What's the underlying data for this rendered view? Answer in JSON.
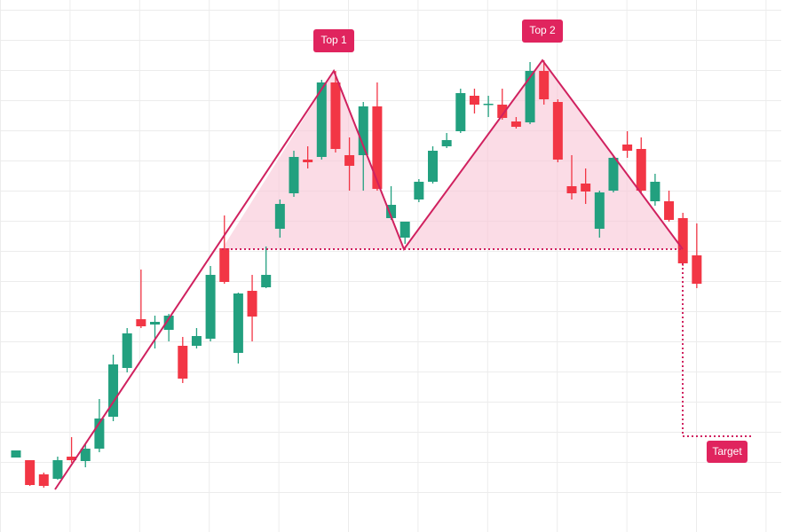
{
  "chart_data": {
    "type": "candlestick",
    "open": [
      84,
      81,
      65,
      60,
      85,
      80,
      94,
      130,
      185,
      240,
      234,
      228,
      210,
      210,
      218,
      320,
      202,
      272,
      276,
      342,
      382,
      420,
      423,
      507,
      425,
      425,
      480,
      354,
      332,
      375,
      395,
      435,
      452,
      492,
      482,
      482,
      463,
      462,
      520,
      485,
      390,
      393,
      342,
      385,
      437,
      432,
      373,
      373,
      354,
      312
    ],
    "high": [
      92,
      81,
      67,
      85,
      107,
      100,
      150,
      200,
      230,
      296,
      244,
      246,
      220,
      230,
      300,
      357,
      270,
      290,
      322,
      375,
      430,
      435,
      510,
      520,
      445,
      485,
      507,
      390,
      350,
      398,
      435,
      450,
      500,
      500,
      492,
      500,
      468,
      530,
      532,
      488,
      425,
      410,
      385,
      425,
      452,
      445,
      404,
      385,
      360,
      348
    ],
    "low": [
      84,
      52,
      50,
      59,
      78,
      73,
      90,
      125,
      180,
      230,
      207,
      215,
      168,
      207,
      215,
      280,
      190,
      215,
      275,
      332,
      378,
      410,
      420,
      428,
      385,
      385,
      385,
      352,
      325,
      372,
      393,
      433,
      450,
      472,
      468,
      465,
      455,
      460,
      482,
      417,
      375,
      370,
      332,
      383,
      422,
      382,
      368,
      350,
      300,
      275
    ],
    "close": [
      92,
      53,
      52,
      81,
      81,
      94,
      128,
      189,
      224,
      232,
      237,
      244,
      173,
      221,
      290,
      282,
      269,
      243,
      290,
      370,
      423,
      417,
      507,
      432,
      413,
      480,
      387,
      369,
      350,
      395,
      430,
      442,
      495,
      482,
      483,
      467,
      457,
      520,
      488,
      420,
      382,
      384,
      383,
      422,
      430,
      385,
      395,
      352,
      303,
      280
    ],
    "up_color": "#22a07f",
    "down_color": "#f23645",
    "ylim": [
      0,
      600
    ],
    "annotations": [
      "Top 1",
      "Top 2",
      "Target"
    ]
  }
}
